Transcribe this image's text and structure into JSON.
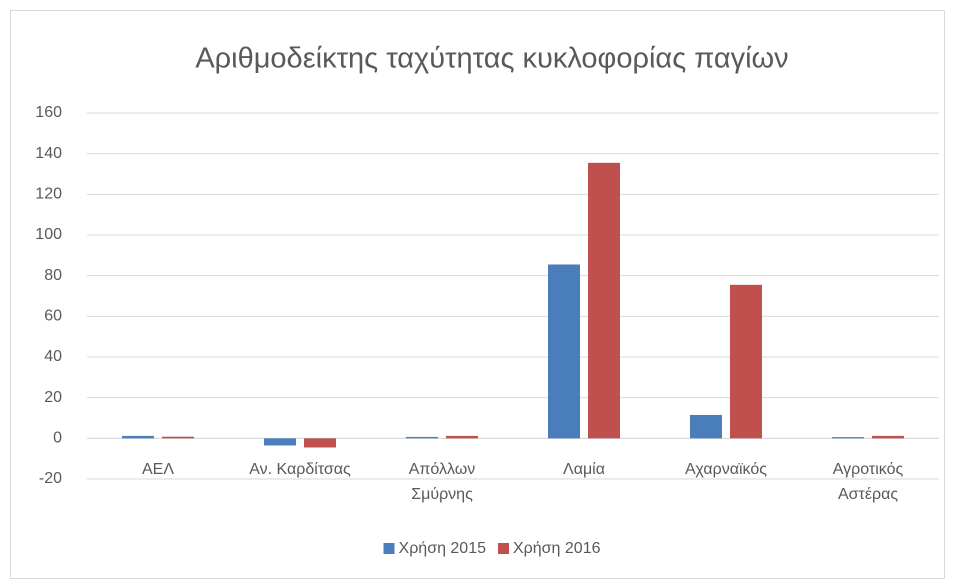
{
  "chart_data": {
    "type": "bar",
    "title": "Αριθμοδείκτης ταχύτητας κυκλοφορίας παγίων",
    "categories": [
      "ΑΕΛ",
      "Αν. Καρδίτσας",
      "Απόλλων Σμύρνης",
      "Λαμία",
      "Αχαρναϊκός",
      "Αγροτικός Αστέρας"
    ],
    "series": [
      {
        "name": "Χρήση 2015",
        "color": "#4a7ebb",
        "values": [
          1.2,
          -3.5,
          0.7,
          85.5,
          11.5,
          0.6
        ]
      },
      {
        "name": "Χρήση 2016",
        "color": "#c0504d",
        "values": [
          0.8,
          -4.5,
          1.2,
          135.5,
          75.5,
          1.2
        ]
      }
    ],
    "ylim": [
      -20,
      160
    ],
    "yticks": [
      -20,
      0,
      20,
      40,
      60,
      80,
      100,
      120,
      140,
      160
    ],
    "grid": true,
    "legend": "bottom"
  }
}
